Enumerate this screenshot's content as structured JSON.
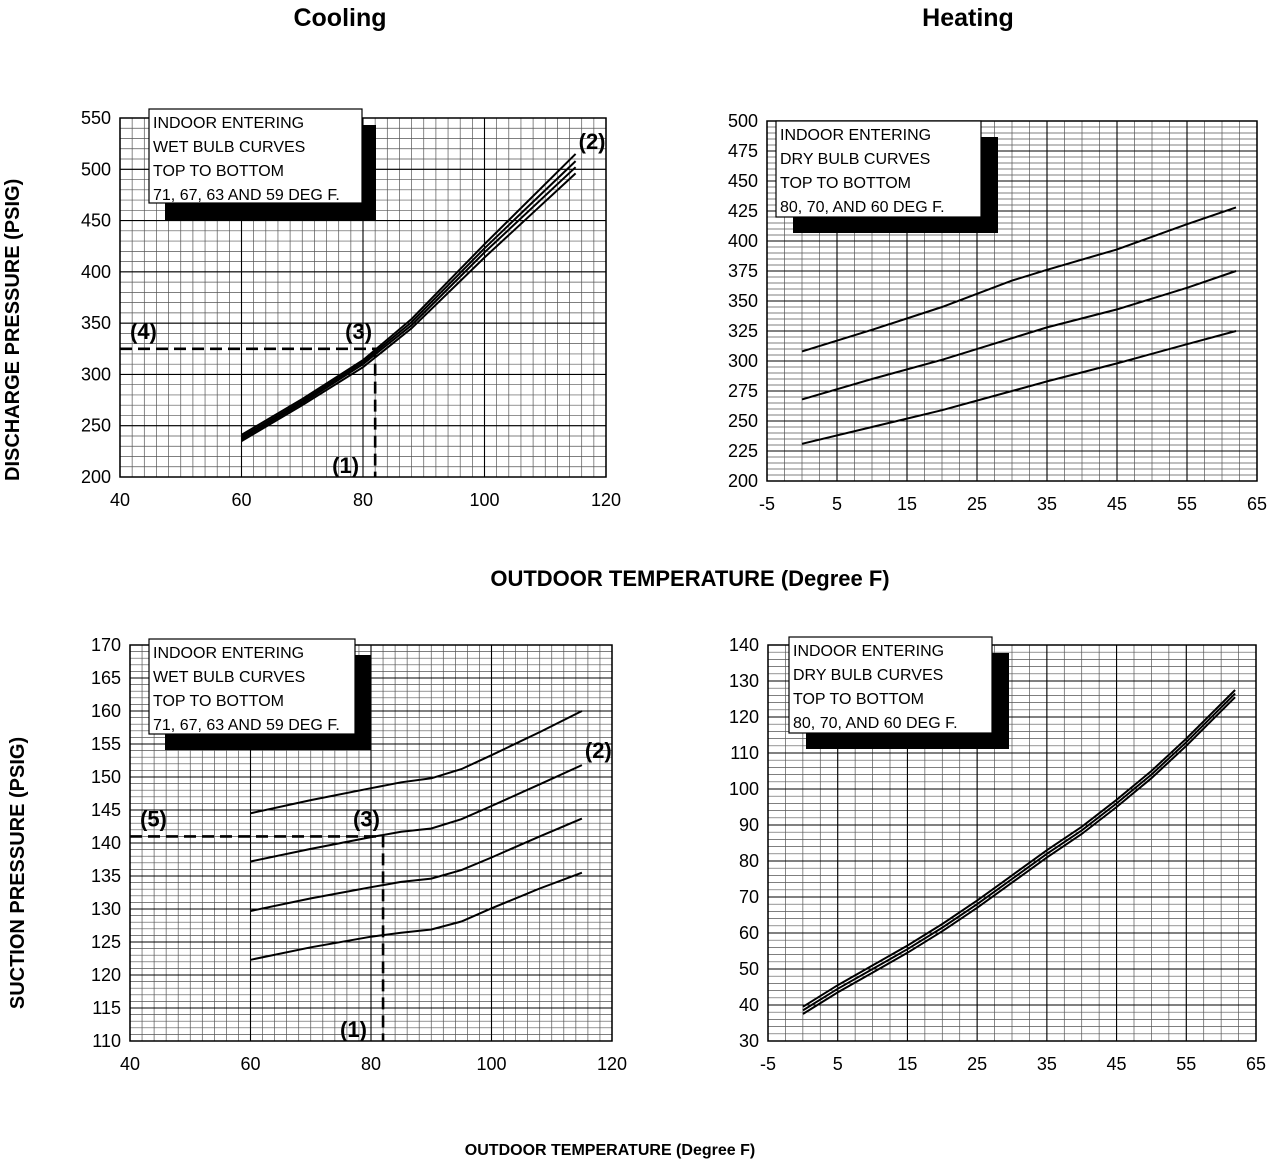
{
  "titles": {
    "cooling": "Cooling",
    "heating": "Heating"
  },
  "ylabels": {
    "discharge": "DISCHARGE PRESSURE (PSIG)",
    "suction": "SUCTION PRESSURE (PSIG)"
  },
  "xlabels": {
    "middle": "OUTDOOR TEMPERATURE (Degree F)",
    "bottom": "OUTDOOR TEMPERATURE (Degree F)"
  },
  "chart_data": [
    {
      "id": "cooling-discharge",
      "type": "line",
      "xlim": [
        40,
        120
      ],
      "ylim": [
        200,
        550
      ],
      "xticks": [
        40,
        60,
        80,
        100,
        120
      ],
      "yticks": [
        200,
        250,
        300,
        350,
        400,
        450,
        500,
        550
      ],
      "grid": true,
      "note": [
        "INDOOR ENTERING",
        "WET BULB CURVES",
        "TOP TO BOTTOM",
        "71, 67, 63 AND 59 DEG F."
      ],
      "series": [
        {
          "x": [
            60,
            70,
            80,
            88,
            100,
            115
          ],
          "y": [
            241,
            276,
            314,
            354,
            427,
            515
          ]
        },
        {
          "x": [
            60,
            70,
            80,
            88,
            100,
            115
          ],
          "y": [
            239,
            274,
            312,
            351,
            423,
            508
          ]
        },
        {
          "x": [
            60,
            70,
            80,
            88,
            100,
            115
          ],
          "y": [
            237,
            272,
            310,
            348,
            419,
            502
          ]
        },
        {
          "x": [
            60,
            70,
            80,
            88,
            100,
            115
          ],
          "y": [
            235,
            270,
            307,
            345,
            414,
            496
          ]
        }
      ],
      "annotations": [
        {
          "label": "(2)",
          "x": 115,
          "y": 514
        },
        {
          "label": "(3)",
          "x": 82,
          "y": 325
        },
        {
          "label": "(4)",
          "x": 40,
          "y": 325
        },
        {
          "label": "(1)",
          "x": 82,
          "y": 200
        }
      ],
      "guide": {
        "x": 82,
        "y": 325
      }
    },
    {
      "id": "heating-discharge",
      "type": "line",
      "xlim": [
        -5,
        65
      ],
      "ylim": [
        200,
        500
      ],
      "xticks": [
        -5,
        5,
        15,
        25,
        35,
        45,
        55,
        65
      ],
      "yticks": [
        200,
        225,
        250,
        275,
        300,
        325,
        350,
        375,
        400,
        425,
        450,
        475,
        500
      ],
      "grid": true,
      "note": [
        "INDOOR ENTERING",
        "DRY BULB CURVES",
        "TOP TO BOTTOM",
        "80, 70, AND 60 DEG F."
      ],
      "series": [
        {
          "x": [
            0,
            10,
            20,
            30,
            35,
            45,
            55,
            62
          ],
          "y": [
            308,
            326,
            345,
            367,
            376,
            393,
            414,
            428
          ]
        },
        {
          "x": [
            0,
            10,
            20,
            30,
            35,
            45,
            55,
            62
          ],
          "y": [
            268,
            285,
            301,
            319,
            328,
            343,
            361,
            375
          ]
        },
        {
          "x": [
            0,
            10,
            20,
            30,
            35,
            45,
            55,
            62
          ],
          "y": [
            231,
            245,
            259,
            275,
            283,
            298,
            314,
            325
          ]
        }
      ],
      "annotations": []
    },
    {
      "id": "cooling-suction",
      "type": "line",
      "xlim": [
        40,
        120
      ],
      "ylim": [
        110,
        170
      ],
      "xticks": [
        40,
        60,
        80,
        100,
        120
      ],
      "yticks": [
        110,
        115,
        120,
        125,
        130,
        135,
        140,
        145,
        150,
        155,
        160,
        165,
        170
      ],
      "grid": true,
      "note": [
        "INDOOR ENTERING",
        "WET BULB CURVES",
        "TOP TO BOTTOM",
        "71, 67, 63 AND 59 DEG F."
      ],
      "series": [
        {
          "x": [
            60,
            70,
            80,
            85,
            90,
            95,
            100,
            108,
            115
          ],
          "y": [
            144.5,
            146.5,
            148.3,
            149.2,
            149.8,
            151.2,
            153.3,
            156.8,
            160.0
          ]
        },
        {
          "x": [
            60,
            70,
            80,
            85,
            90,
            95,
            100,
            108,
            115
          ],
          "y": [
            137.2,
            139.1,
            140.9,
            141.7,
            142.2,
            143.6,
            145.6,
            148.9,
            151.8
          ]
        },
        {
          "x": [
            60,
            70,
            80,
            85,
            90,
            95,
            100,
            108,
            115
          ],
          "y": [
            129.7,
            131.6,
            133.3,
            134.1,
            134.6,
            135.9,
            137.8,
            141.0,
            143.7
          ]
        },
        {
          "x": [
            60,
            70,
            80,
            85,
            90,
            95,
            100,
            108,
            115
          ],
          "y": [
            122.3,
            124.2,
            125.8,
            126.4,
            126.9,
            128.1,
            130.1,
            133.1,
            135.5
          ]
        }
      ],
      "annotations": [
        {
          "label": "(2)",
          "x": 115,
          "y": 152
        },
        {
          "label": "(3)",
          "x": 82,
          "y": 141
        },
        {
          "label": "(5)",
          "x": 40,
          "y": 141
        },
        {
          "label": "(1)",
          "x": 82,
          "y": 110
        }
      ],
      "guide": {
        "x": 82,
        "y": 141
      }
    },
    {
      "id": "heating-suction",
      "type": "line",
      "xlim": [
        -5,
        65
      ],
      "ylim": [
        30,
        140
      ],
      "xticks": [
        -5,
        5,
        15,
        25,
        35,
        45,
        55,
        65
      ],
      "yticks": [
        30,
        40,
        50,
        60,
        70,
        80,
        90,
        100,
        110,
        120,
        130,
        140
      ],
      "grid": true,
      "note": [
        "INDOOR ENTERING",
        "DRY BULB CURVES",
        "TOP TO BOTTOM",
        "80, 70, AND 60 DEG F."
      ],
      "series": [
        {
          "x": [
            0,
            5,
            10,
            15,
            20,
            25,
            30,
            35,
            40,
            45,
            50,
            55,
            62
          ],
          "y": [
            39.5,
            45.5,
            51,
            56.5,
            62.5,
            69,
            76,
            83,
            89.5,
            97,
            105,
            114,
            127.5
          ]
        },
        {
          "x": [
            0,
            5,
            10,
            15,
            20,
            25,
            30,
            35,
            40,
            45,
            50,
            55,
            62
          ],
          "y": [
            38.5,
            44.5,
            50,
            55.5,
            61.5,
            68,
            75,
            82,
            88.5,
            96,
            104,
            113,
            126.5
          ]
        },
        {
          "x": [
            0,
            5,
            10,
            15,
            20,
            25,
            30,
            35,
            40,
            45,
            50,
            55,
            62
          ],
          "y": [
            37.5,
            43.5,
            49,
            54.5,
            60.5,
            67,
            74,
            81,
            87.5,
            95,
            103,
            112,
            125.5
          ]
        }
      ],
      "annotations": []
    }
  ]
}
